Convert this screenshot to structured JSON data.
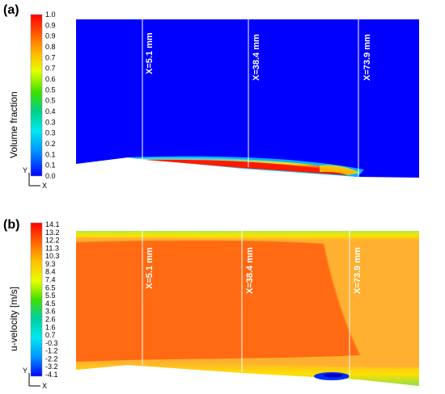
{
  "panels": [
    {
      "id": "a",
      "label": "(a)",
      "colorbar_title": "Volume fraction",
      "colorbar_ticks": [
        "1.0",
        "0.9",
        "0.9",
        "0.8",
        "0.7",
        "0.7",
        "0.6",
        "0.5",
        "0.5",
        "0.4",
        "0.3",
        "0.3",
        "0.2",
        "0.1",
        "0.1",
        "0.0"
      ],
      "stations": [
        "X=5.1 mm",
        "X=38.4 mm",
        "X=73.9 mm"
      ]
    },
    {
      "id": "b",
      "label": "(b)",
      "colorbar_title": "u-velocity [m/s]",
      "colorbar_ticks": [
        "14.1",
        "13.2",
        "12.2",
        "11.3",
        "10.3",
        "9.3",
        "8.4",
        "7.4",
        "6.5",
        "5.5",
        "4.5",
        "3.6",
        "2.6",
        "1.6",
        "0.7",
        "-0.3",
        "-1.2",
        "-2.2",
        "-3.2",
        "-4.1"
      ],
      "stations": [
        "X=5.1 mm",
        "X=38.4 mm",
        "X=73.9 mm"
      ]
    }
  ],
  "axes_indicator": {
    "y": "Y",
    "x": "X"
  }
}
